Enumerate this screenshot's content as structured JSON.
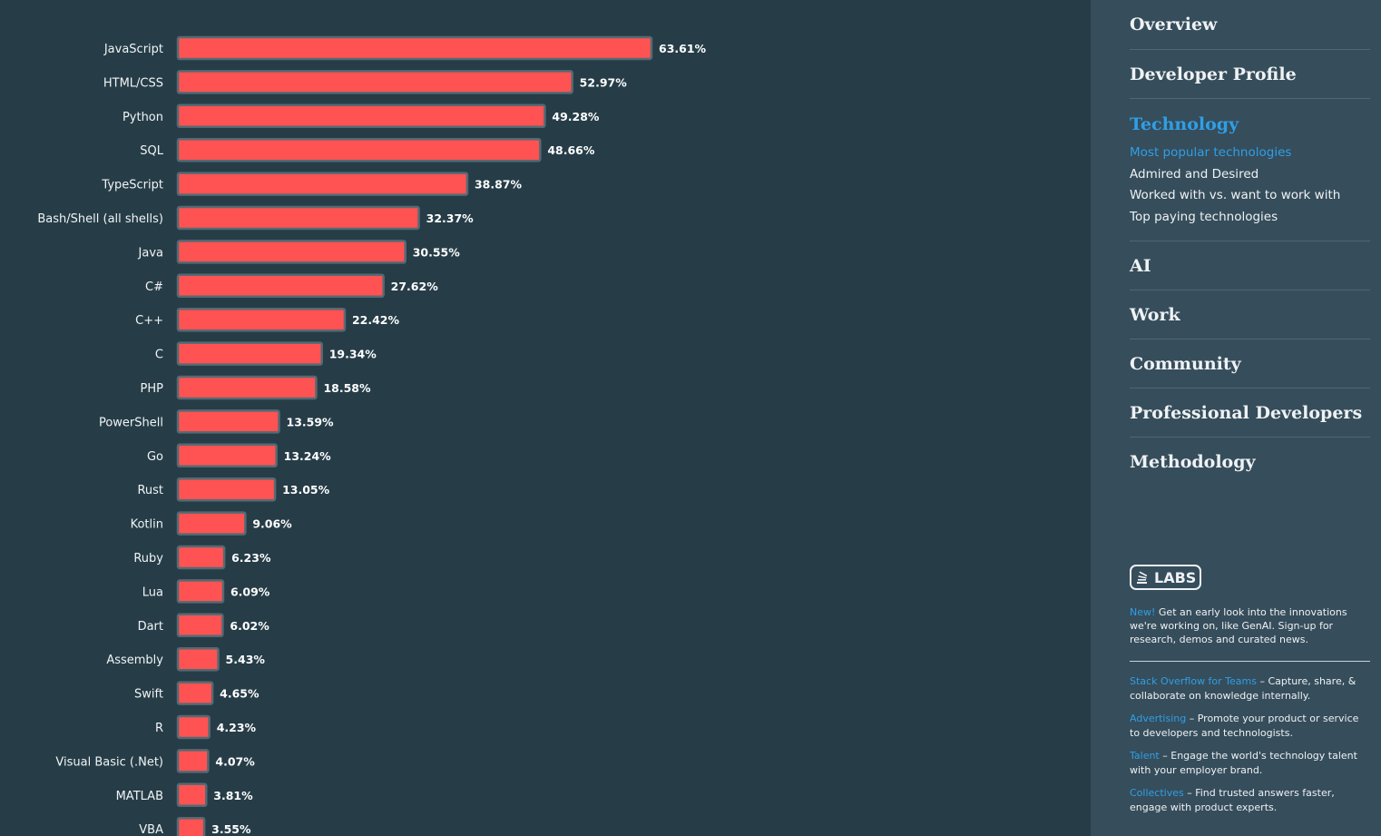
{
  "chart_data": {
    "type": "bar",
    "orientation": "horizontal",
    "bar_color": "#ff5252",
    "value_suffix": "%",
    "categories": [
      "JavaScript",
      "HTML/CSS",
      "Python",
      "SQL",
      "TypeScript",
      "Bash/Shell (all shells)",
      "Java",
      "C#",
      "C++",
      "C",
      "PHP",
      "PowerShell",
      "Go",
      "Rust",
      "Kotlin",
      "Ruby",
      "Lua",
      "Dart",
      "Assembly",
      "Swift",
      "R",
      "Visual Basic (.Net)",
      "MATLAB",
      "VBA"
    ],
    "values": [
      63.61,
      52.97,
      49.28,
      48.66,
      38.87,
      32.37,
      30.55,
      27.62,
      22.42,
      19.34,
      18.58,
      13.59,
      13.24,
      13.05,
      9.06,
      6.23,
      6.09,
      6.02,
      5.43,
      4.65,
      4.23,
      4.07,
      3.81,
      3.55
    ],
    "value_labels": [
      "63.61%",
      "52.97%",
      "49.28%",
      "48.66%",
      "38.87%",
      "32.37%",
      "30.55%",
      "27.62%",
      "22.42%",
      "19.34%",
      "18.58%",
      "13.59%",
      "13.24%",
      "13.05%",
      "9.06%",
      "6.23%",
      "6.09%",
      "6.02%",
      "5.43%",
      "4.65%",
      "4.23%",
      "4.07%",
      "3.81%",
      "3.55%"
    ]
  },
  "sidebar": {
    "sections": [
      {
        "title": "Overview"
      },
      {
        "title": "Developer Profile"
      },
      {
        "title": "Technology",
        "items": [
          "Most popular technologies",
          "Admired and Desired",
          "Worked with vs. want to work with",
          "Top paying technologies"
        ]
      },
      {
        "title": "AI"
      },
      {
        "title": "Work"
      },
      {
        "title": "Community"
      },
      {
        "title": "Professional Developers"
      },
      {
        "title": "Methodology"
      }
    ],
    "labs": {
      "logo_text": "LABS",
      "new_label": "New!",
      "text": " Get an early look into the innovations we're working on, like GenAI. Sign-up for research, demos and curated news."
    },
    "promos": [
      {
        "link": "Stack Overflow for Teams",
        "text": " – Capture, share, & collaborate on knowledge internally."
      },
      {
        "link": "Advertising",
        "text": " – Promote your product or service to developers and technologists."
      },
      {
        "link": "Talent",
        "text": " – Engage the world's technology talent with your employer brand."
      },
      {
        "link": "Collectives",
        "text": " – Find trusted answers faster, engage with product experts."
      }
    ]
  }
}
